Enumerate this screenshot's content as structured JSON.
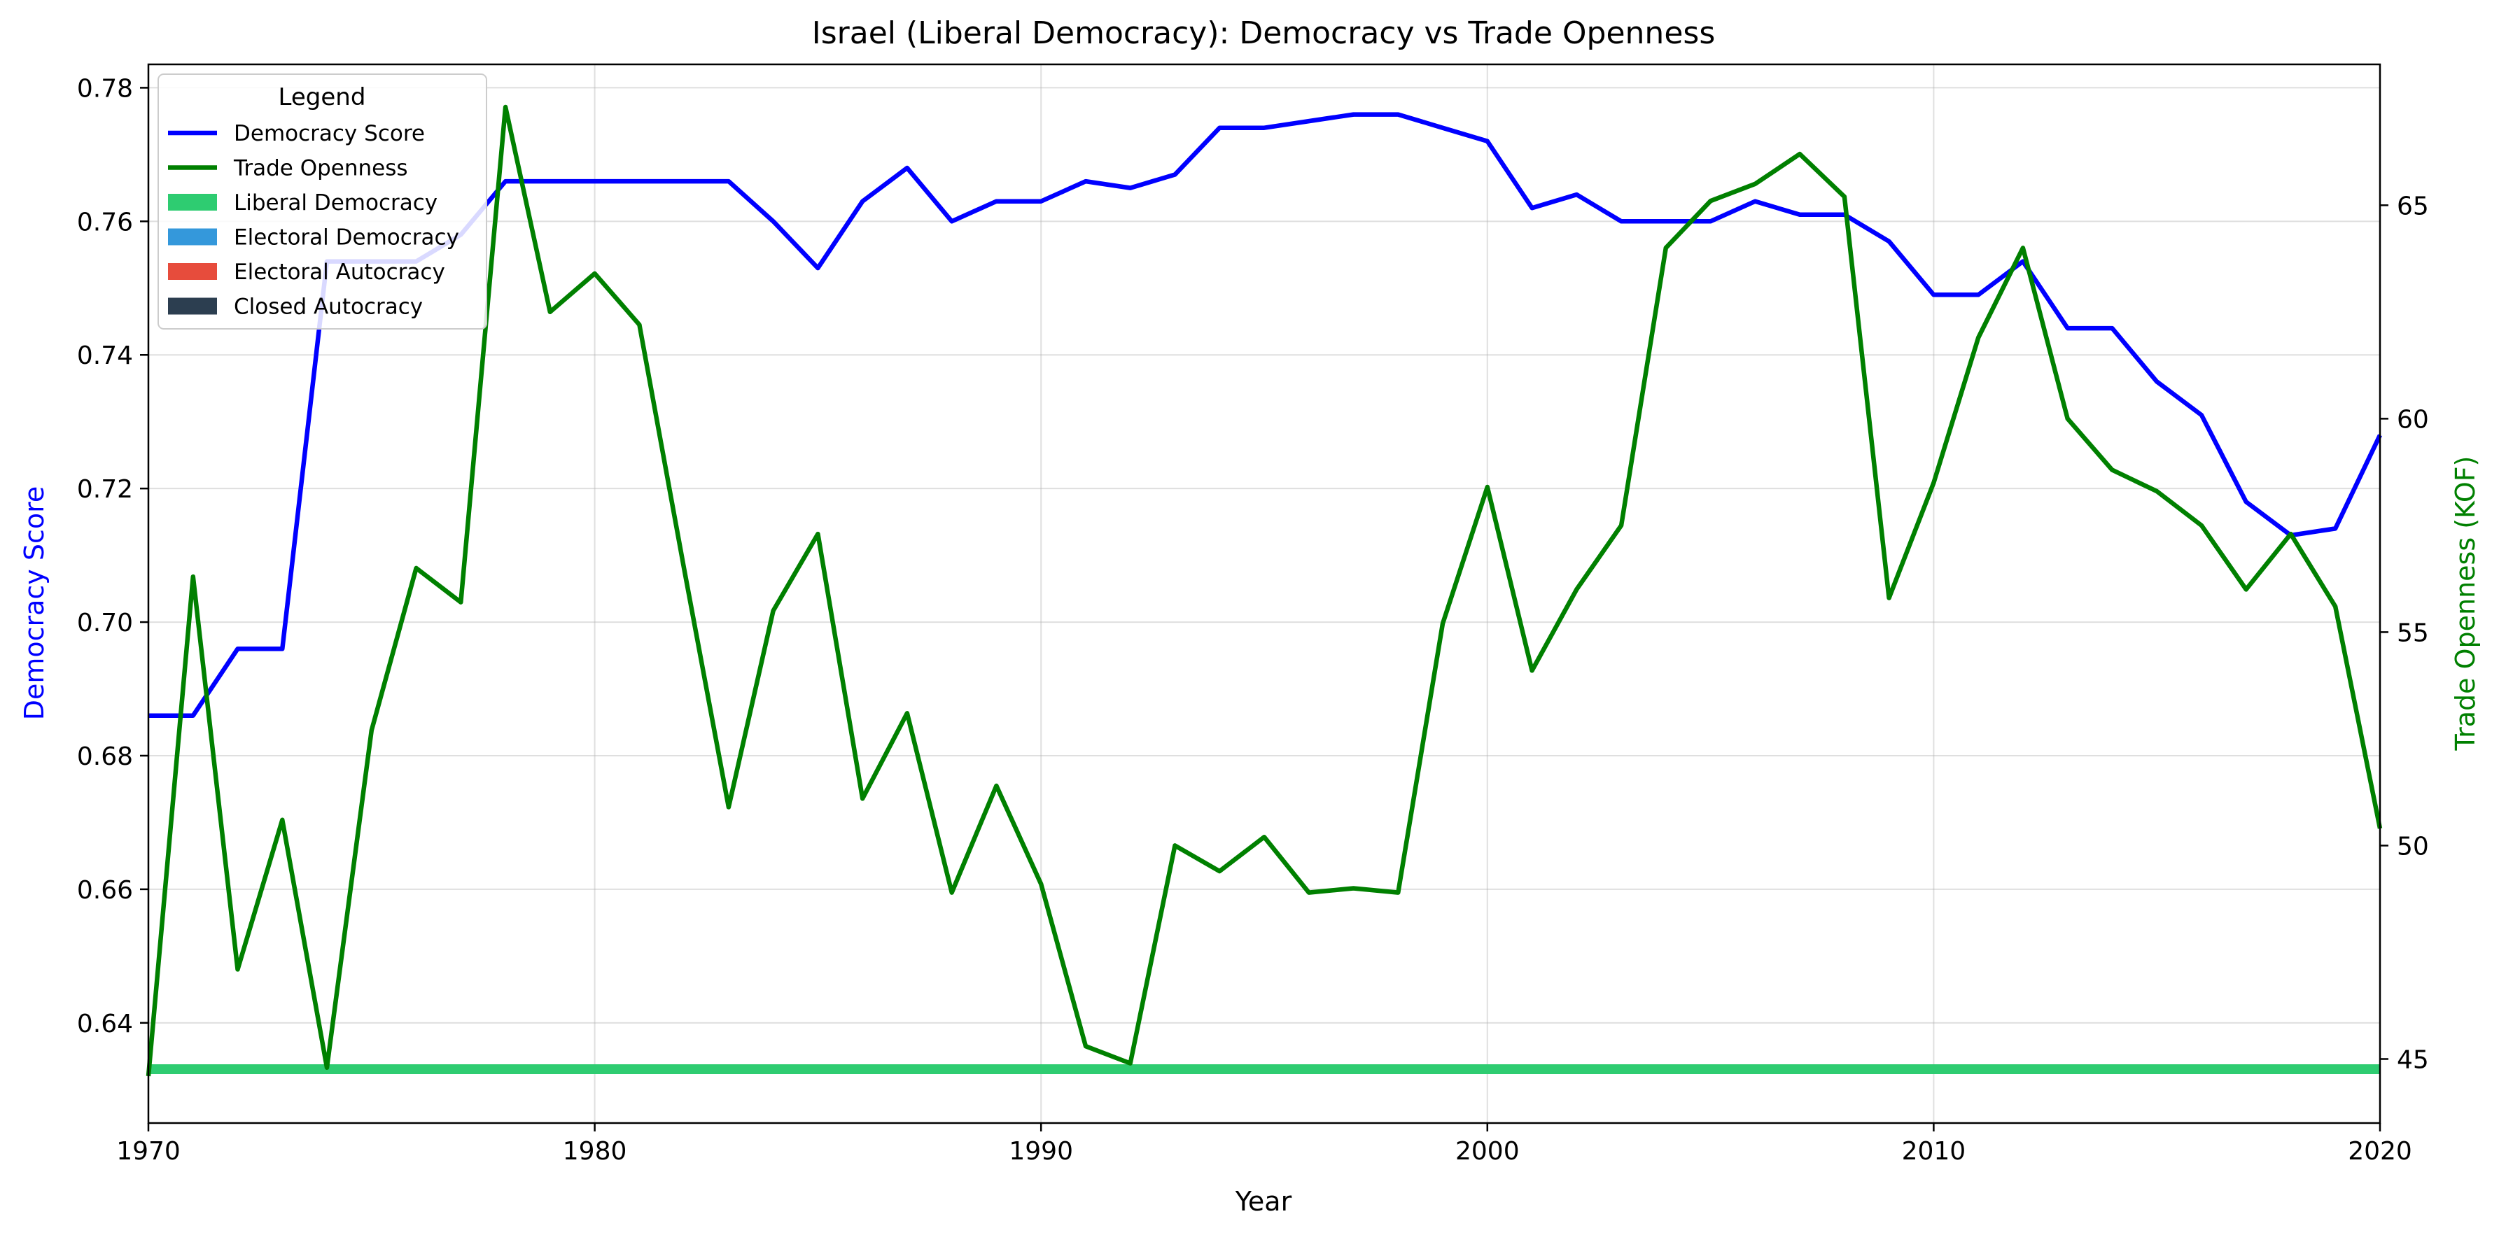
{
  "chart_data": {
    "type": "line",
    "title": "Israel (Liberal Democracy): Democracy vs Trade Openness",
    "xlabel": "Year",
    "ylabel_left": "Democracy Score",
    "ylabel_right": "Trade Openness (KOF)",
    "xlim": [
      1970,
      2020
    ],
    "ylim_left": [
      0.625,
      0.7835
    ],
    "ylim_right": [
      43.5,
      68.3
    ],
    "xticks": [
      1970,
      1980,
      1990,
      2000,
      2010,
      2020
    ],
    "yticks_left": [
      0.64,
      0.66,
      0.68,
      0.7,
      0.72,
      0.74,
      0.76,
      0.78
    ],
    "ytick_labels_left": [
      "0.64",
      "0.66",
      "0.68",
      "0.70",
      "0.72",
      "0.74",
      "0.76",
      "0.78"
    ],
    "yticks_right": [
      45,
      50,
      55,
      60,
      65
    ],
    "grid": true,
    "legend_position": "top-left",
    "legend_title": "Legend",
    "legend": [
      {
        "label": "Democracy Score",
        "kind": "line",
        "color": "#0000ff"
      },
      {
        "label": "Trade Openness",
        "kind": "line",
        "color": "#008000"
      },
      {
        "label": "Liberal Democracy",
        "kind": "patch",
        "color": "#2ecc71"
      },
      {
        "label": "Electoral Democracy",
        "kind": "patch",
        "color": "#3498db"
      },
      {
        "label": "Electoral Autocracy",
        "kind": "patch",
        "color": "#e74c3c"
      },
      {
        "label": "Closed Autocracy",
        "kind": "patch",
        "color": "#2c3e50"
      }
    ],
    "regime_band": {
      "label": "Liberal Democracy",
      "color": "#2ecc71",
      "x": [
        1970,
        2020
      ]
    },
    "series": [
      {
        "name": "Democracy Score",
        "axis": "left",
        "color": "#0000ff",
        "x": [
          1970,
          1971,
          1972,
          1973,
          1974,
          1975,
          1976,
          1977,
          1978,
          1979,
          1980,
          1981,
          1982,
          1983,
          1984,
          1985,
          1986,
          1987,
          1988,
          1989,
          1990,
          1991,
          1992,
          1993,
          1994,
          1995,
          1996,
          1997,
          1998,
          1999,
          2000,
          2001,
          2002,
          2003,
          2004,
          2005,
          2006,
          2007,
          2008,
          2009,
          2010,
          2011,
          2012,
          2013,
          2014,
          2015,
          2016,
          2017,
          2018,
          2019,
          2020
        ],
        "values": [
          0.686,
          0.686,
          0.696,
          0.696,
          0.754,
          0.754,
          0.754,
          0.758,
          0.766,
          0.766,
          0.766,
          0.766,
          0.766,
          0.766,
          0.76,
          0.753,
          0.763,
          0.768,
          0.76,
          0.763,
          0.763,
          0.766,
          0.765,
          0.767,
          0.774,
          0.774,
          0.775,
          0.776,
          0.776,
          0.774,
          0.772,
          0.762,
          0.764,
          0.76,
          0.76,
          0.76,
          0.763,
          0.761,
          0.761,
          0.757,
          0.749,
          0.749,
          0.754,
          0.744,
          0.744,
          0.736,
          0.731,
          0.718,
          0.713,
          0.714,
          0.728
        ]
      },
      {
        "name": "Trade Openness",
        "axis": "right",
        "color": "#008000",
        "x": [
          1970,
          1971,
          1972,
          1973,
          1974,
          1975,
          1976,
          1977,
          1978,
          1979,
          1980,
          1981,
          1982,
          1983,
          1984,
          1985,
          1986,
          1987,
          1988,
          1989,
          1990,
          1991,
          1992,
          1993,
          1994,
          1995,
          1996,
          1997,
          1998,
          1999,
          2000,
          2001,
          2002,
          2003,
          2004,
          2005,
          2006,
          2007,
          2008,
          2009,
          2010,
          2011,
          2012,
          2013,
          2014,
          2015,
          2016,
          2017,
          2018,
          2019,
          2020
        ],
        "values": [
          44.6,
          56.3,
          47.1,
          50.6,
          44.8,
          52.7,
          56.5,
          55.7,
          67.3,
          62.5,
          63.4,
          62.2,
          56.5,
          50.9,
          55.5,
          57.3,
          51.1,
          53.1,
          48.9,
          51.4,
          49.1,
          45.3,
          44.9,
          50.0,
          49.4,
          50.2,
          48.9,
          49.0,
          48.9,
          55.2,
          58.4,
          54.1,
          56.0,
          57.5,
          64.0,
          65.1,
          65.5,
          66.2,
          65.2,
          55.8,
          58.5,
          61.9,
          64.0,
          60.0,
          58.8,
          58.3,
          57.5,
          56.0,
          57.3,
          55.6,
          50.4
        ]
      }
    ]
  }
}
